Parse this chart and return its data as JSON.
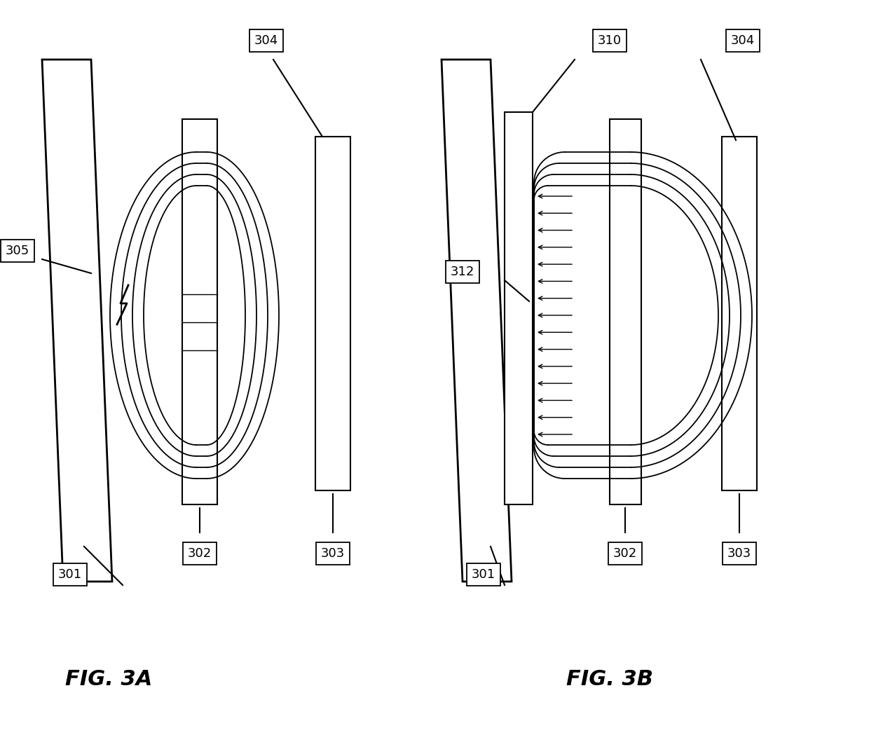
{
  "fig_width": 12.4,
  "fig_height": 10.69,
  "background_color": "#ffffff",
  "line_color": "#000000",
  "label_fontsize": 13,
  "caption_fontsize": 22,
  "caption_style": "italic"
}
